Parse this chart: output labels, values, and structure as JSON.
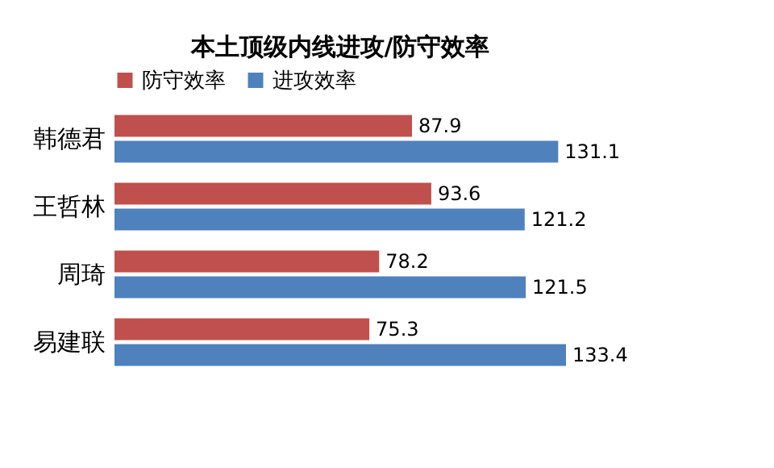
{
  "chart_data": {
    "type": "bar",
    "orientation": "horizontal",
    "title": "本土顶级内线进攻/防守效率",
    "categories": [
      "韩德君",
      "王哲林",
      "周琦",
      "易建联"
    ],
    "series": [
      {
        "name": "防守效率",
        "color": "#c0504d",
        "values": [
          87.9,
          93.6,
          78.2,
          75.3
        ]
      },
      {
        "name": "进攻效率",
        "color": "#4f81bd",
        "values": [
          131.1,
          121.2,
          121.5,
          133.4
        ]
      }
    ],
    "data_labels": true,
    "legend": "top",
    "grid": false
  }
}
